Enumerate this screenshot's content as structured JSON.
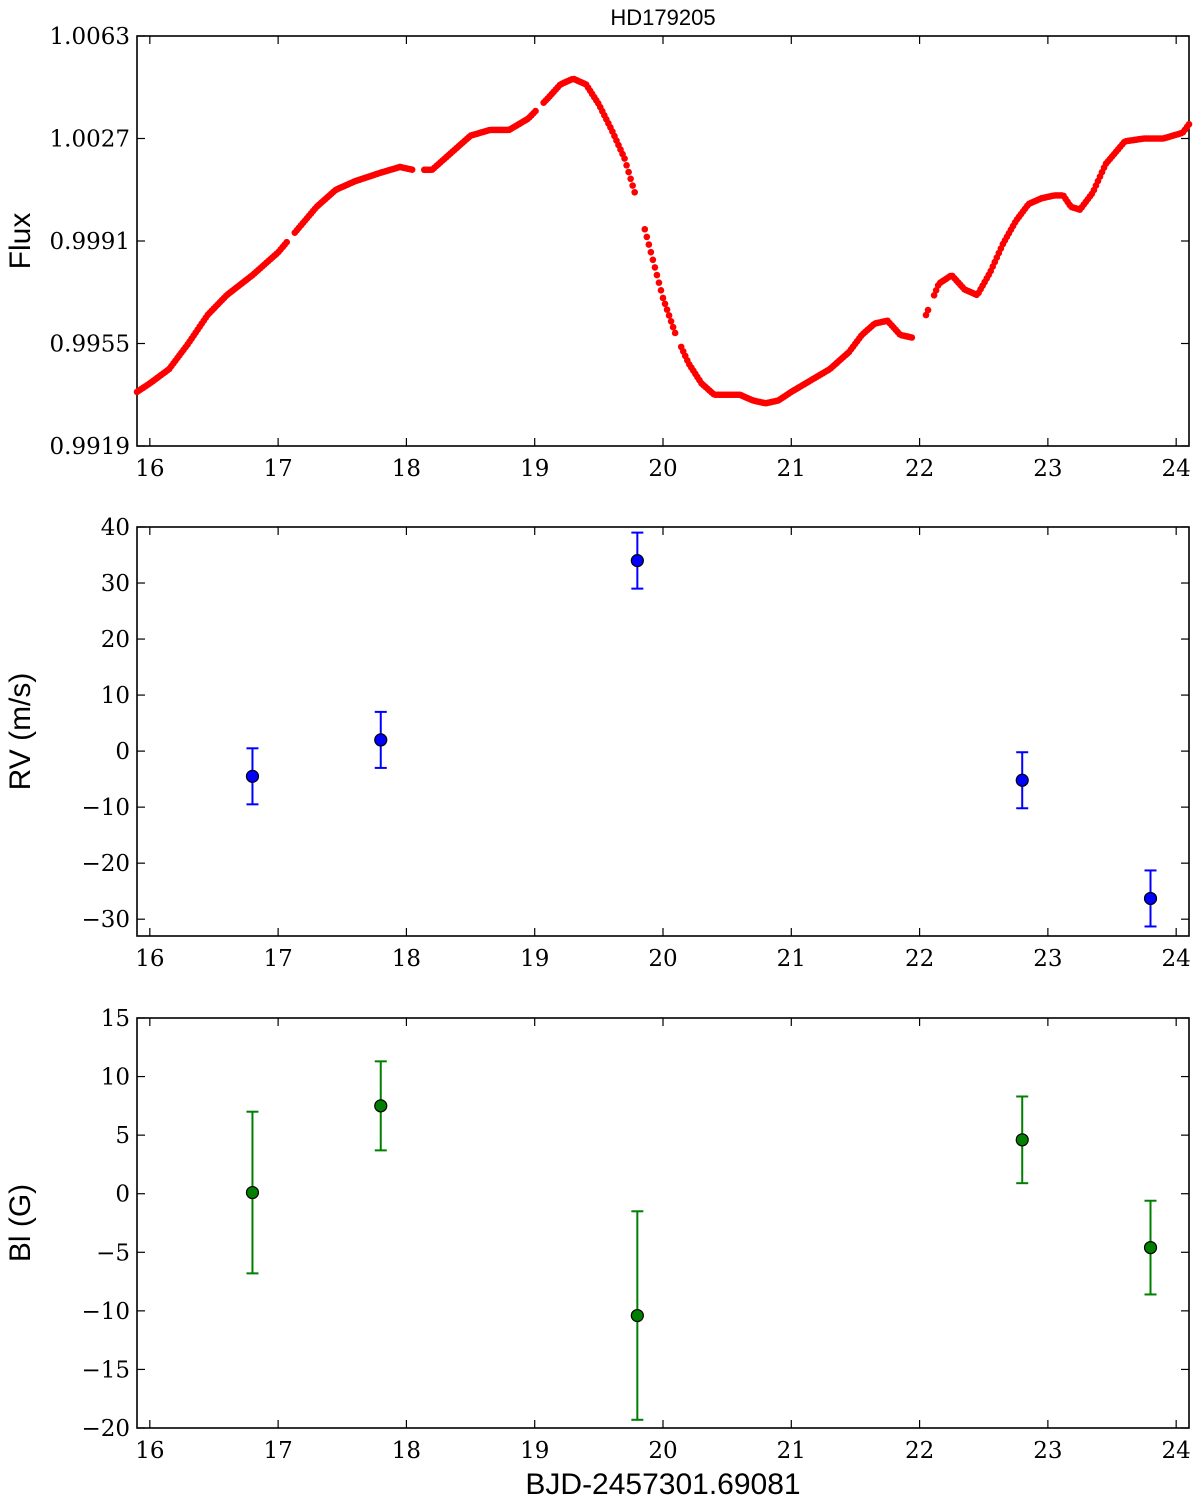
{
  "title": "HD179205",
  "xlabel": "BJD-2457301.69081",
  "chart_data": [
    {
      "type": "scatter",
      "ylabel": "Flux",
      "xlim": [
        15.9,
        24.1
      ],
      "ylim": [
        0.9919,
        1.0063
      ],
      "xticks": [
        16,
        17,
        18,
        19,
        20,
        21,
        22,
        23,
        24
      ],
      "yticks": [
        "0.9919",
        "0.9955",
        "0.9991",
        "1.0027",
        "1.0063"
      ],
      "color": "#ff0000",
      "curve_x": [
        15.9,
        16.0,
        16.15,
        16.3,
        16.45,
        16.6,
        16.8,
        17.0,
        17.15,
        17.3,
        17.45,
        17.6,
        17.8,
        17.95,
        18.05,
        18.2,
        18.35,
        18.5,
        18.65,
        18.8,
        18.95,
        19.1,
        19.2,
        19.3,
        19.4,
        19.5,
        19.6,
        19.7,
        19.8,
        19.9,
        20.0,
        20.1,
        20.2,
        20.3,
        20.4,
        20.5,
        20.6,
        20.7,
        20.8,
        20.9,
        21.0,
        21.15,
        21.3,
        21.45,
        21.55,
        21.65,
        21.75,
        21.85,
        21.95,
        22.05,
        22.15,
        22.25,
        22.35,
        22.45,
        22.55,
        22.65,
        22.75,
        22.85,
        22.95,
        23.05,
        23.12,
        23.18,
        23.25,
        23.35,
        23.45,
        23.6,
        23.75,
        23.9,
        24.05,
        24.1
      ],
      "curve_y": [
        0.9938,
        0.9941,
        0.9946,
        0.9955,
        0.9965,
        0.9972,
        0.9979,
        0.9987,
        0.9995,
        1.0003,
        1.0009,
        1.0012,
        1.0015,
        1.0017,
        1.0016,
        1.0016,
        1.0022,
        1.0028,
        1.003,
        1.003,
        1.0034,
        1.0041,
        1.0046,
        1.0048,
        1.0046,
        1.0039,
        1.003,
        1.002,
        1.0005,
        0.9988,
        0.9971,
        0.9958,
        0.9948,
        0.9941,
        0.9937,
        0.9937,
        0.9937,
        0.9935,
        0.9934,
        0.9935,
        0.9938,
        0.9942,
        0.9946,
        0.9952,
        0.9958,
        0.9962,
        0.9963,
        0.9958,
        0.9957,
        0.9965,
        0.9976,
        0.9979,
        0.9974,
        0.9972,
        0.998,
        0.999,
        0.9998,
        1.0004,
        1.0006,
        1.0007,
        1.0007,
        1.0003,
        1.0002,
        1.0008,
        1.0018,
        1.0026,
        1.0027,
        1.0027,
        1.0029,
        1.0032
      ],
      "gaps": [
        [
          17.08,
          17.13
        ],
        [
          18.05,
          18.13
        ],
        [
          19.02,
          19.06
        ],
        [
          19.78,
          19.85
        ],
        [
          20.1,
          20.14
        ],
        [
          21.95,
          22.04
        ],
        [
          22.07,
          22.1
        ]
      ]
    },
    {
      "type": "scatter",
      "ylabel": "RV (m/s)",
      "xlim": [
        15.9,
        24.1
      ],
      "ylim": [
        -33,
        40
      ],
      "xticks": [
        16,
        17,
        18,
        19,
        20,
        21,
        22,
        23,
        24
      ],
      "yticks": [
        -30,
        -20,
        -10,
        0,
        10,
        20,
        30,
        40
      ],
      "color": "#0000ff",
      "x": [
        16.8,
        17.8,
        19.8,
        22.8,
        23.8
      ],
      "y": [
        -4.5,
        2.0,
        34.0,
        -5.2,
        -26.3
      ],
      "yerr": [
        5.0,
        5.0,
        5.0,
        5.0,
        5.0
      ]
    },
    {
      "type": "scatter",
      "ylabel": "Bl (G)",
      "xlim": [
        15.9,
        24.1
      ],
      "ylim": [
        -20,
        15
      ],
      "xticks": [
        16,
        17,
        18,
        19,
        20,
        21,
        22,
        23,
        24
      ],
      "yticks": [
        -20,
        -15,
        -10,
        -5,
        0,
        5,
        10,
        15
      ],
      "color": "#007f00",
      "x": [
        16.8,
        17.8,
        19.8,
        22.8,
        23.8
      ],
      "y": [
        0.1,
        7.5,
        -10.4,
        4.6,
        -4.6
      ],
      "yerr": [
        6.9,
        3.8,
        8.9,
        3.7,
        4.0
      ]
    }
  ]
}
